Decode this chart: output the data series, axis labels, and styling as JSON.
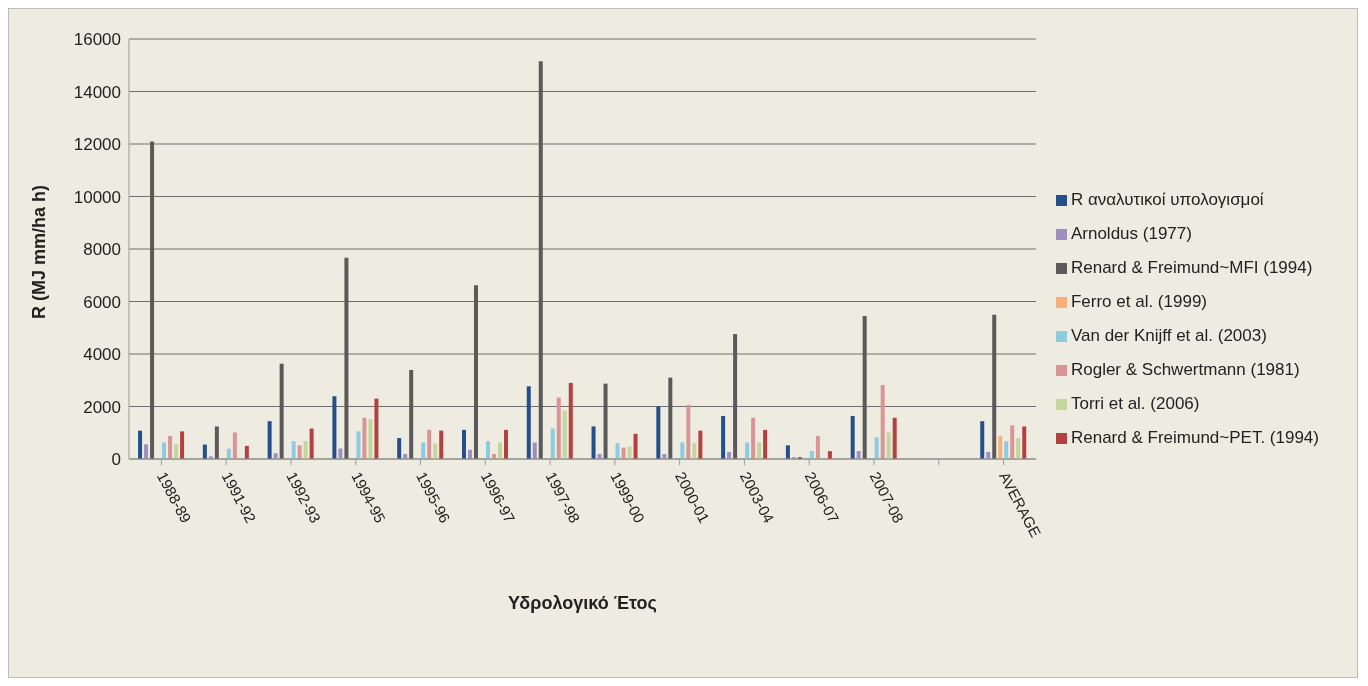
{
  "chart_data": {
    "type": "bar",
    "xlabel": "Υδρολογικό Έτος",
    "ylabel": "R (MJ mm/ha h)",
    "categories": [
      "1988-89",
      "1991-92",
      "1992-93",
      "1994-95",
      "1995-96",
      "1996-97",
      "1997-98",
      "1999-00",
      "2000-01",
      "2003-04",
      "2006-07",
      "2007-08",
      null,
      "AVERAGE"
    ],
    "series": [
      {
        "name": "R αναλυτικοί υπολογισμοί",
        "color": "#254f8a",
        "values": [
          1080,
          550,
          1440,
          2390,
          800,
          1110,
          2770,
          1240,
          2000,
          1640,
          520,
          1640,
          null,
          1440
        ]
      },
      {
        "name": "Arnoldus (1977)",
        "color": "#9e8fbf",
        "values": [
          560,
          100,
          220,
          400,
          190,
          350,
          630,
          190,
          190,
          270,
          70,
          300,
          null,
          270
        ]
      },
      {
        "name": "Renard & Freimund~MFI (1994)",
        "color": "#5a5a5a",
        "values": [
          12100,
          1240,
          3630,
          7670,
          3390,
          6620,
          15150,
          2870,
          3100,
          4760,
          70,
          5450,
          null,
          5500
        ]
      },
      {
        "name": "Ferro et al. (1999)",
        "color": "#f7b07a",
        "values": [
          null,
          null,
          null,
          null,
          null,
          null,
          null,
          null,
          null,
          null,
          null,
          null,
          null,
          870
        ]
      },
      {
        "name": "Van der Knijff et al. (2003)",
        "color": "#8ccbe0",
        "values": [
          630,
          390,
          680,
          1050,
          630,
          680,
          1160,
          600,
          630,
          630,
          300,
          830,
          null,
          680
        ]
      },
      {
        "name": "Rogler & Schwertmann (1981)",
        "color": "#d99594",
        "values": [
          880,
          1010,
          520,
          1570,
          1110,
          190,
          2340,
          430,
          2060,
          1570,
          880,
          2820,
          null,
          1280
        ]
      },
      {
        "name": "Torri et al. (2006)",
        "color": "#c3d69b",
        "values": [
          560,
          null,
          680,
          1520,
          590,
          630,
          1850,
          470,
          600,
          630,
          0,
          1010,
          null,
          800
        ]
      },
      {
        "name": "Renard & Freimund~PET. (1994)",
        "color": "#b3413f",
        "values": [
          1050,
          500,
          1160,
          2300,
          1080,
          1110,
          2900,
          960,
          1080,
          1110,
          300,
          1570,
          null,
          1240
        ]
      }
    ],
    "ylim": [
      0,
      16000
    ],
    "yticks": [
      0,
      2000,
      4000,
      6000,
      8000,
      10000,
      12000,
      14000,
      16000
    ],
    "grid": "y",
    "legend": "right"
  }
}
